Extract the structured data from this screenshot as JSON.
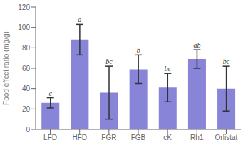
{
  "chart_data": {
    "type": "bar",
    "categories": [
      "LFD",
      "HFD",
      "FGR",
      "FGB",
      "cK",
      "Rh1",
      "Orlistat"
    ],
    "values": [
      26,
      88,
      36,
      59,
      41,
      69,
      40
    ],
    "errors": [
      5,
      15,
      26,
      14,
      14,
      9,
      22
    ],
    "annotations": [
      "c",
      "a",
      "bc",
      "b",
      "bc",
      "ab",
      "bc"
    ],
    "ylabel": "Food effect ratio (mg/g)",
    "ylim": [
      0,
      120
    ],
    "yticks": [
      0,
      20,
      40,
      60,
      80,
      100,
      120
    ],
    "color": "#8884d8",
    "grid": false
  }
}
